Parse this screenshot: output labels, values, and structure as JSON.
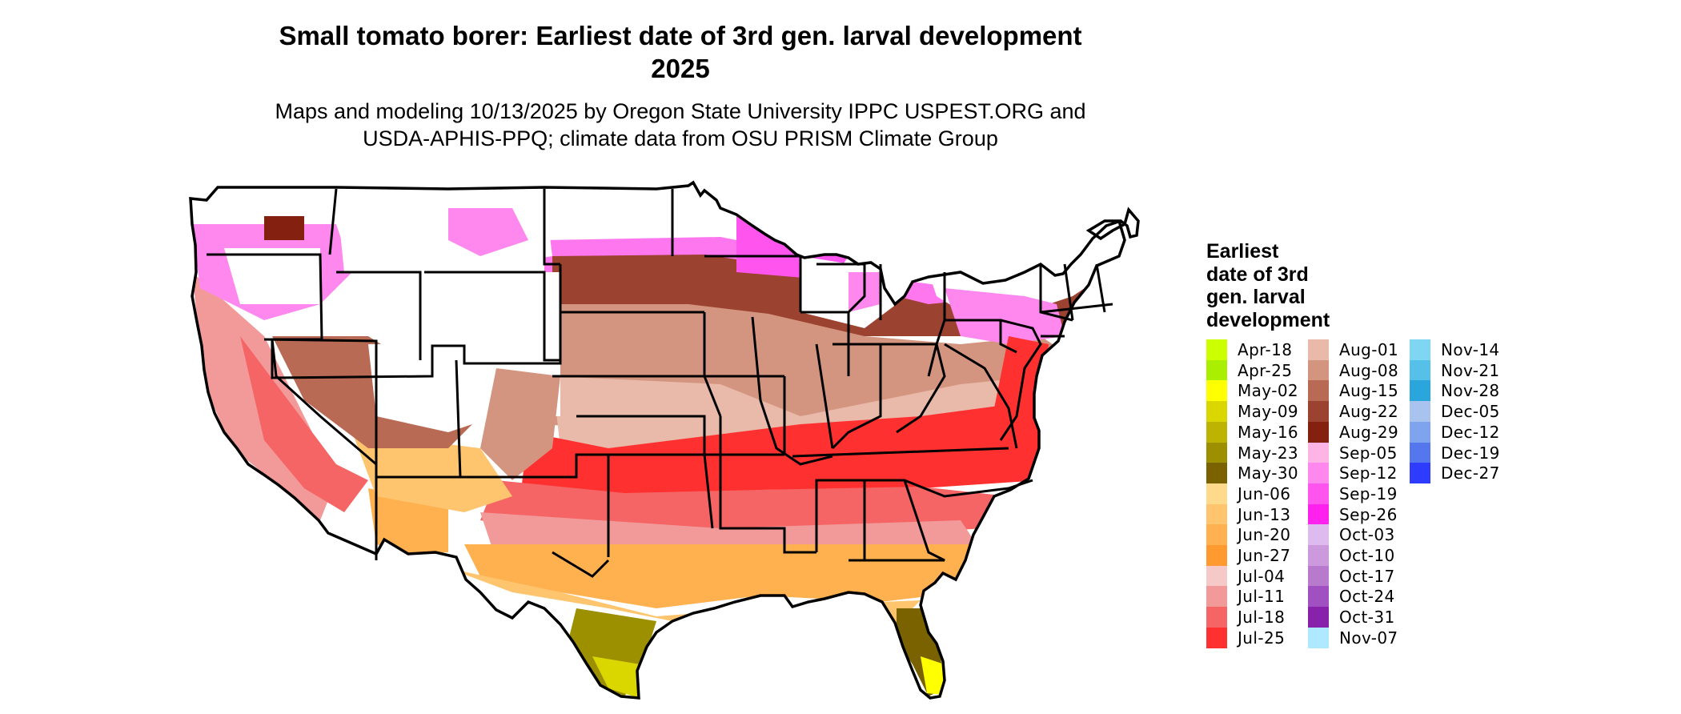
{
  "title_line1": "Small tomato borer: Earliest date of 3rd gen. larval development",
  "title_line2": "2025",
  "subtitle_line1": "Maps and modeling 10/13/2025 by Oregon State University IPPC USPEST.ORG and",
  "subtitle_line2": "USDA-APHIS-PPQ; climate data from OSU PRISM Climate Group",
  "legend": {
    "title_lines": [
      "Earliest",
      "date of 3rd",
      "gen. larval",
      "development"
    ],
    "items": [
      {
        "label": "Apr-18",
        "color": "#ccff00"
      },
      {
        "label": "Apr-25",
        "color": "#aaee00"
      },
      {
        "label": "May-02",
        "color": "#ffff00"
      },
      {
        "label": "May-09",
        "color": "#d9d600"
      },
      {
        "label": "May-16",
        "color": "#bcb400"
      },
      {
        "label": "May-23",
        "color": "#9c8f00"
      },
      {
        "label": "May-30",
        "color": "#7a6200"
      },
      {
        "label": "Jun-06",
        "color": "#ffd98c"
      },
      {
        "label": "Jun-13",
        "color": "#ffc56e"
      },
      {
        "label": "Jun-20",
        "color": "#ffb04f"
      },
      {
        "label": "Jun-27",
        "color": "#ff9a30"
      },
      {
        "label": "Jul-04",
        "color": "#f6c9c9"
      },
      {
        "label": "Jul-11",
        "color": "#f29a9a"
      },
      {
        "label": "Jul-18",
        "color": "#f56565"
      },
      {
        "label": "Jul-25",
        "color": "#ff3030"
      },
      {
        "label": "Aug-01",
        "color": "#e9b9aa"
      },
      {
        "label": "Aug-08",
        "color": "#d49580"
      },
      {
        "label": "Aug-15",
        "color": "#b86a55"
      },
      {
        "label": "Aug-22",
        "color": "#9c4230"
      },
      {
        "label": "Aug-29",
        "color": "#832010"
      },
      {
        "label": "Sep-05",
        "color": "#ffb4e6"
      },
      {
        "label": "Sep-12",
        "color": "#ff88ee"
      },
      {
        "label": "Sep-19",
        "color": "#ff55ee"
      },
      {
        "label": "Sep-26",
        "color": "#ff22ee"
      },
      {
        "label": "Oct-03",
        "color": "#ddbbee"
      },
      {
        "label": "Oct-10",
        "color": "#cc99dd"
      },
      {
        "label": "Oct-17",
        "color": "#b87acc"
      },
      {
        "label": "Oct-24",
        "color": "#a050c0"
      },
      {
        "label": "Oct-31",
        "color": "#8822aa"
      },
      {
        "label": "Nov-07",
        "color": "#aee9ff"
      },
      {
        "label": "Nov-14",
        "color": "#7fd6f2"
      },
      {
        "label": "Nov-21",
        "color": "#55c0e8"
      },
      {
        "label": "Nov-28",
        "color": "#2aa6dc"
      },
      {
        "label": "Dec-05",
        "color": "#a8c4ee"
      },
      {
        "label": "Dec-12",
        "color": "#7fa4ee"
      },
      {
        "label": "Dec-19",
        "color": "#5577ee"
      },
      {
        "label": "Dec-27",
        "color": "#2d3cff"
      }
    ]
  }
}
